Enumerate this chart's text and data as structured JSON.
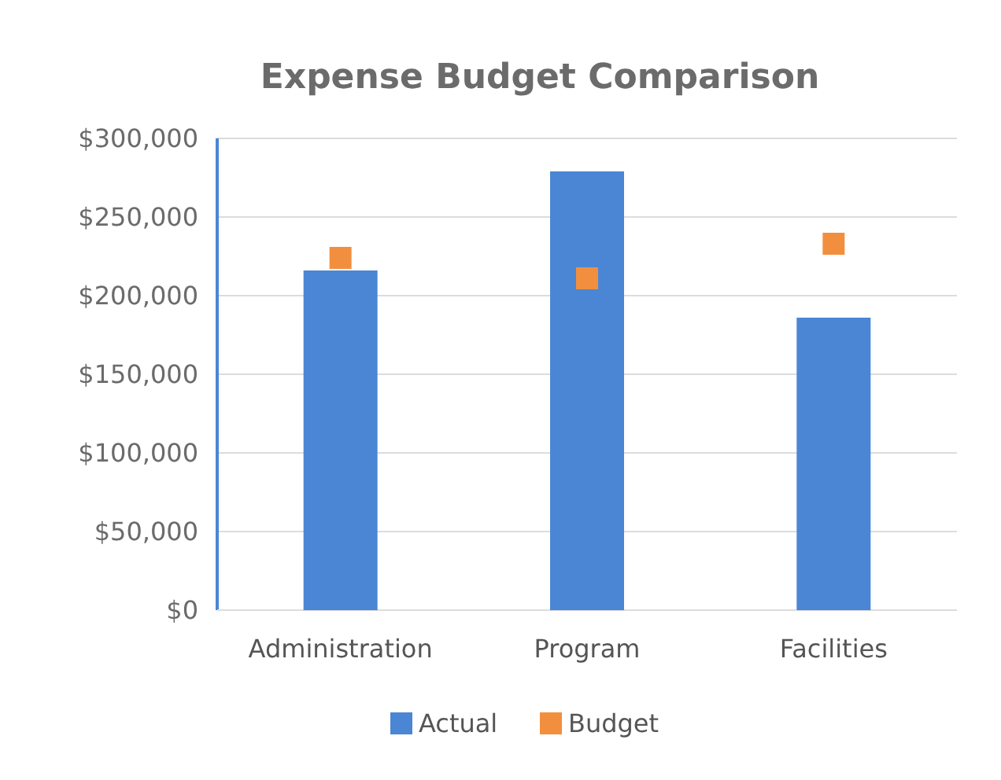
{
  "chart_data": {
    "type": "bar",
    "title": "Expense Budget Comparison",
    "categories": [
      "Administration",
      "Program",
      "Facilities"
    ],
    "series": [
      {
        "name": "Actual",
        "color": "#4a86d4",
        "values": [
          216000,
          279000,
          186000
        ]
      },
      {
        "name": "Budget",
        "type": "scatter",
        "color": "#f28f3f",
        "values": [
          224000,
          211000,
          233000
        ]
      }
    ],
    "ylim": [
      0,
      300000
    ],
    "yticks": [
      {
        "value": 0,
        "label": "$0"
      },
      {
        "value": 50000,
        "label": "$50,000"
      },
      {
        "value": 100000,
        "label": "$100,000"
      },
      {
        "value": 150000,
        "label": "$150,000"
      },
      {
        "value": 200000,
        "label": "$200,000"
      },
      {
        "value": 250000,
        "label": "$250,000"
      },
      {
        "value": 300000,
        "label": "$300,000"
      }
    ],
    "grid": "y",
    "legend": "bottom",
    "marker": "square"
  }
}
